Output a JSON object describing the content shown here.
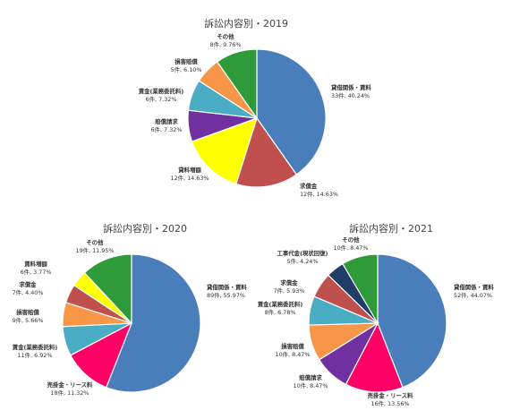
{
  "chart_data": [
    {
      "type": "pie",
      "title": "訴訟内容別・2019",
      "slices": [
        {
          "name": "貸借関係・賃料",
          "count_text": "33件",
          "value": 40.24,
          "pct_text": "40.24%",
          "color": "#4a7ebb"
        },
        {
          "name": "求償金",
          "count_text": "12件",
          "value": 14.63,
          "pct_text": "14.63%",
          "color": "#c0504d"
        },
        {
          "name": "貸料増額",
          "count_text": "12件",
          "value": 14.63,
          "pct_text": "14.63%",
          "color": "#ffff00"
        },
        {
          "name": "賠償請求",
          "count_text": "6件",
          "value": 7.32,
          "pct_text": "7.32%",
          "color": "#7030a0"
        },
        {
          "name": "賃金(業務委託料)",
          "count_text": "6件",
          "value": 7.32,
          "pct_text": "7.32%",
          "color": "#4bacc6"
        },
        {
          "name": "損害賠償",
          "count_text": "5件",
          "value": 6.1,
          "pct_text": "6.10%",
          "color": "#f79646"
        },
        {
          "name": "その他",
          "count_text": "8件",
          "value": 9.76,
          "pct_text": "9.76%",
          "color": "#2e9a3a"
        }
      ]
    },
    {
      "type": "pie",
      "title": "訴訟内容別・2020",
      "slices": [
        {
          "name": "貸借関係・賃料",
          "count_text": "89件",
          "value": 55.97,
          "pct_text": "55.97%",
          "color": "#4a7ebb"
        },
        {
          "name": "売掛金・リース料",
          "count_text": "18件",
          "value": 11.32,
          "pct_text": "11.32%",
          "color": "#ff0066"
        },
        {
          "name": "賃金(業務委託料)",
          "count_text": "11件",
          "value": 6.92,
          "pct_text": "6.92%",
          "color": "#4bacc6"
        },
        {
          "name": "損害賠償",
          "count_text": "9件",
          "value": 5.66,
          "pct_text": "5.66%",
          "color": "#f79646"
        },
        {
          "name": "求償金",
          "count_text": "7件",
          "value": 4.4,
          "pct_text": "4.40%",
          "color": "#c0504d"
        },
        {
          "name": "賃料増額",
          "count_text": "6件",
          "value": 3.77,
          "pct_text": "3.77%",
          "color": "#ffff00"
        },
        {
          "name": "その他",
          "count_text": "19件",
          "value": 11.95,
          "pct_text": "11.95%",
          "color": "#2e9a3a"
        }
      ]
    },
    {
      "type": "pie",
      "title": "訴訟内容別・2021",
      "slices": [
        {
          "name": "貸借関係・賃料",
          "count_text": "52件",
          "value": 44.07,
          "pct_text": "44.07%",
          "color": "#4a7ebb"
        },
        {
          "name": "売掛金・リース料",
          "count_text": "16件",
          "value": 13.56,
          "pct_text": "13.56%",
          "color": "#ff0066"
        },
        {
          "name": "賠償請求",
          "count_text": "10件",
          "value": 8.47,
          "pct_text": "8.47%",
          "color": "#7030a0"
        },
        {
          "name": "損害賠償",
          "count_text": "10件",
          "value": 8.47,
          "pct_text": "8.47%",
          "color": "#f79646"
        },
        {
          "name": "賃金(業務委託料)",
          "count_text": "8件",
          "value": 6.78,
          "pct_text": "6.78%",
          "color": "#4bacc6"
        },
        {
          "name": "求償金",
          "count_text": "7件",
          "value": 5.93,
          "pct_text": "5.93%",
          "color": "#c0504d"
        },
        {
          "name": "工事代金(現状回復)",
          "count_text": "5件",
          "value": 4.24,
          "pct_text": "4.24%",
          "color": "#1f3d66"
        },
        {
          "name": "その他",
          "count_text": "10件",
          "value": 8.47,
          "pct_text": "8.47%",
          "color": "#2e9a3a"
        }
      ]
    }
  ]
}
